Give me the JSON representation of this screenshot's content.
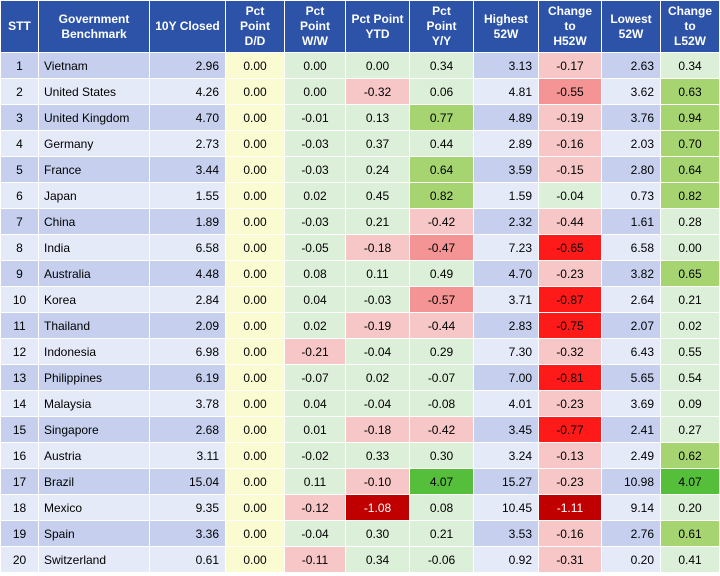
{
  "headers": [
    "STT",
    "Government Benchmark",
    "10Y Closed",
    "Pct Point D/D",
    "Pct Point W/W",
    "Pct Point YTD",
    "Pct Point Y/Y",
    "Highest 52W",
    "Change to H52W",
    "Lowest 52W",
    "Change to L52W"
  ],
  "colors": {
    "header_bg": "#2c53a8",
    "row_blue": "#c6d0ee",
    "row_light": "#e5eaf8",
    "dd_yellow": "#fbfbd2",
    "neutral_green": "#dcefd8",
    "red_1": "#f7c6c6",
    "red_2": "#f59494",
    "red_3": "#ff1a1a",
    "red_4": "#c00000",
    "green_1": "#a6d470",
    "green_2": "#55bf3b"
  },
  "rows": [
    {
      "stt": "1",
      "country": "Vietnam",
      "close": "2.96",
      "dd": "0.00",
      "ww": "0.00",
      "ytd": "0.00",
      "yy": "0.34",
      "h52": "3.13",
      "ch52": "-0.17",
      "l52": "2.63",
      "cl52": "0.34"
    },
    {
      "stt": "2",
      "country": "United States",
      "close": "4.26",
      "dd": "0.00",
      "ww": "0.00",
      "ytd": "-0.32",
      "yy": "0.06",
      "h52": "4.81",
      "ch52": "-0.55",
      "l52": "3.62",
      "cl52": "0.63"
    },
    {
      "stt": "3",
      "country": "United Kingdom",
      "close": "4.70",
      "dd": "0.00",
      "ww": "-0.01",
      "ytd": "0.13",
      "yy": "0.77",
      "h52": "4.89",
      "ch52": "-0.19",
      "l52": "3.76",
      "cl52": "0.94"
    },
    {
      "stt": "4",
      "country": "Germany",
      "close": "2.73",
      "dd": "0.00",
      "ww": "-0.03",
      "ytd": "0.37",
      "yy": "0.44",
      "h52": "2.89",
      "ch52": "-0.16",
      "l52": "2.03",
      "cl52": "0.70"
    },
    {
      "stt": "5",
      "country": "France",
      "close": "3.44",
      "dd": "0.00",
      "ww": "-0.03",
      "ytd": "0.24",
      "yy": "0.64",
      "h52": "3.59",
      "ch52": "-0.15",
      "l52": "2.80",
      "cl52": "0.64"
    },
    {
      "stt": "6",
      "country": "Japan",
      "close": "1.55",
      "dd": "0.00",
      "ww": "0.02",
      "ytd": "0.45",
      "yy": "0.82",
      "h52": "1.59",
      "ch52": "-0.04",
      "l52": "0.73",
      "cl52": "0.82"
    },
    {
      "stt": "7",
      "country": "China",
      "close": "1.89",
      "dd": "0.00",
      "ww": "-0.03",
      "ytd": "0.21",
      "yy": "-0.42",
      "h52": "2.32",
      "ch52": "-0.44",
      "l52": "1.61",
      "cl52": "0.28"
    },
    {
      "stt": "8",
      "country": "India",
      "close": "6.58",
      "dd": "0.00",
      "ww": "-0.05",
      "ytd": "-0.18",
      "yy": "-0.47",
      "h52": "7.23",
      "ch52": "-0.65",
      "l52": "6.58",
      "cl52": "0.00"
    },
    {
      "stt": "9",
      "country": "Australia",
      "close": "4.48",
      "dd": "0.00",
      "ww": "0.08",
      "ytd": "0.11",
      "yy": "0.49",
      "h52": "4.70",
      "ch52": "-0.23",
      "l52": "3.82",
      "cl52": "0.65"
    },
    {
      "stt": "10",
      "country": "Korea",
      "close": "2.84",
      "dd": "0.00",
      "ww": "0.04",
      "ytd": "-0.03",
      "yy": "-0.57",
      "h52": "3.71",
      "ch52": "-0.87",
      "l52": "2.64",
      "cl52": "0.21"
    },
    {
      "stt": "11",
      "country": "Thailand",
      "close": "2.09",
      "dd": "0.00",
      "ww": "0.02",
      "ytd": "-0.19",
      "yy": "-0.44",
      "h52": "2.83",
      "ch52": "-0.75",
      "l52": "2.07",
      "cl52": "0.02"
    },
    {
      "stt": "12",
      "country": "Indonesia",
      "close": "6.98",
      "dd": "0.00",
      "ww": "-0.21",
      "ytd": "-0.04",
      "yy": "0.29",
      "h52": "7.30",
      "ch52": "-0.32",
      "l52": "6.43",
      "cl52": "0.55"
    },
    {
      "stt": "13",
      "country": "Philippines",
      "close": "6.19",
      "dd": "0.00",
      "ww": "-0.07",
      "ytd": "0.02",
      "yy": "-0.07",
      "h52": "7.00",
      "ch52": "-0.81",
      "l52": "5.65",
      "cl52": "0.54"
    },
    {
      "stt": "14",
      "country": "Malaysia",
      "close": "3.78",
      "dd": "0.00",
      "ww": "0.04",
      "ytd": "-0.04",
      "yy": "-0.08",
      "h52": "4.01",
      "ch52": "-0.23",
      "l52": "3.69",
      "cl52": "0.09"
    },
    {
      "stt": "15",
      "country": "Singapore",
      "close": "2.68",
      "dd": "0.00",
      "ww": "0.01",
      "ytd": "-0.18",
      "yy": "-0.42",
      "h52": "3.45",
      "ch52": "-0.77",
      "l52": "2.41",
      "cl52": "0.27"
    },
    {
      "stt": "16",
      "country": "Austria",
      "close": "3.11",
      "dd": "0.00",
      "ww": "-0.02",
      "ytd": "0.33",
      "yy": "0.30",
      "h52": "3.24",
      "ch52": "-0.13",
      "l52": "2.49",
      "cl52": "0.62"
    },
    {
      "stt": "17",
      "country": "Brazil",
      "close": "15.04",
      "dd": "0.00",
      "ww": "0.11",
      "ytd": "-0.10",
      "yy": "4.07",
      "h52": "15.27",
      "ch52": "-0.23",
      "l52": "10.98",
      "cl52": "4.07"
    },
    {
      "stt": "18",
      "country": "Mexico",
      "close": "9.35",
      "dd": "0.00",
      "ww": "-0.12",
      "ytd": "-1.08",
      "yy": "0.08",
      "h52": "10.45",
      "ch52": "-1.11",
      "l52": "9.14",
      "cl52": "0.20"
    },
    {
      "stt": "19",
      "country": "Spain",
      "close": "3.36",
      "dd": "0.00",
      "ww": "-0.04",
      "ytd": "0.30",
      "yy": "0.21",
      "h52": "3.53",
      "ch52": "-0.16",
      "l52": "2.76",
      "cl52": "0.61"
    },
    {
      "stt": "20",
      "country": "Switzerland",
      "close": "0.61",
      "dd": "0.00",
      "ww": "-0.11",
      "ytd": "0.34",
      "yy": "-0.06",
      "h52": "0.92",
      "ch52": "-0.31",
      "l52": "0.20",
      "cl52": "0.41"
    }
  ]
}
